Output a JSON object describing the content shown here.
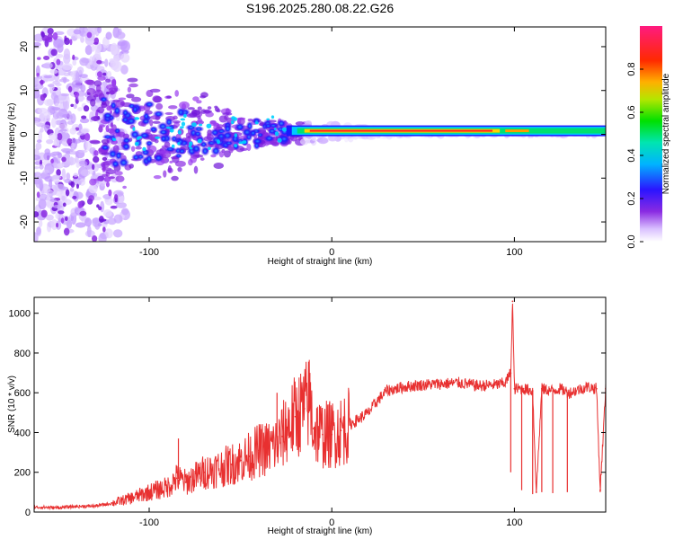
{
  "figure": {
    "title": "S196.2025.280.08.22.G26"
  },
  "chart_data": [
    {
      "type": "heatmap",
      "xlabel": "Height of straight line (km)",
      "ylabel": "Frequency (Hz)",
      "xlim": [
        -163,
        150
      ],
      "ylim": [
        -24.5,
        24.5
      ],
      "xticks": [
        -100,
        0,
        100
      ],
      "yticks": [
        -20,
        -10,
        0,
        10,
        20
      ],
      "colorbar": {
        "label": "Normalized spectral amplitude",
        "range": [
          0,
          1
        ],
        "ticks": [
          0.0,
          0.2,
          0.4,
          0.6,
          0.8
        ],
        "tick_labels": [
          "0.0",
          "0.2",
          "0.4",
          "0.6",
          "0.8"
        ],
        "colors": [
          "#ffffff",
          "#c9a6ff",
          "#7a1ee0",
          "#1a1aff",
          "#00c8ff",
          "#00e060",
          "#c8e600",
          "#ff9900",
          "#ff1a1a",
          "#ff1a80"
        ]
      },
      "carrier_line": {
        "frequency": 0.8,
        "x_start": -15,
        "x_end": 150,
        "peak_amplitude": 0.9
      },
      "grid": false
    },
    {
      "type": "line",
      "xlabel": "Height of straight line (km)",
      "ylabel": "SNR (10 * v/v)",
      "xlim": [
        -163,
        150
      ],
      "ylim": [
        0,
        1080
      ],
      "xticks": [
        -100,
        0,
        100
      ],
      "yticks": [
        0,
        200,
        400,
        600,
        800,
        1000
      ],
      "color": "#e83030",
      "x": [
        -163,
        -150,
        -140,
        -130,
        -120,
        -110,
        -100,
        -90,
        -85,
        -80,
        -70,
        -60,
        -55,
        -50,
        -45,
        -40,
        -35,
        -30,
        -27,
        -25,
        -20,
        -15,
        -12,
        -10,
        -5,
        0,
        5,
        10,
        15,
        20,
        25,
        30,
        40,
        50,
        60,
        70,
        80,
        90,
        95,
        98,
        99,
        100,
        105,
        110,
        112,
        115,
        120,
        125,
        130,
        140,
        145,
        147,
        150
      ],
      "y": [
        25,
        22,
        28,
        30,
        45,
        70,
        100,
        125,
        170,
        150,
        200,
        225,
        240,
        260,
        280,
        310,
        320,
        340,
        380,
        420,
        480,
        520,
        560,
        420,
        390,
        390,
        410,
        440,
        470,
        500,
        560,
        610,
        630,
        640,
        645,
        650,
        635,
        640,
        650,
        700,
        1060,
        620,
        620,
        610,
        100,
        620,
        610,
        620,
        600,
        630,
        620,
        110,
        620
      ]
    }
  ]
}
